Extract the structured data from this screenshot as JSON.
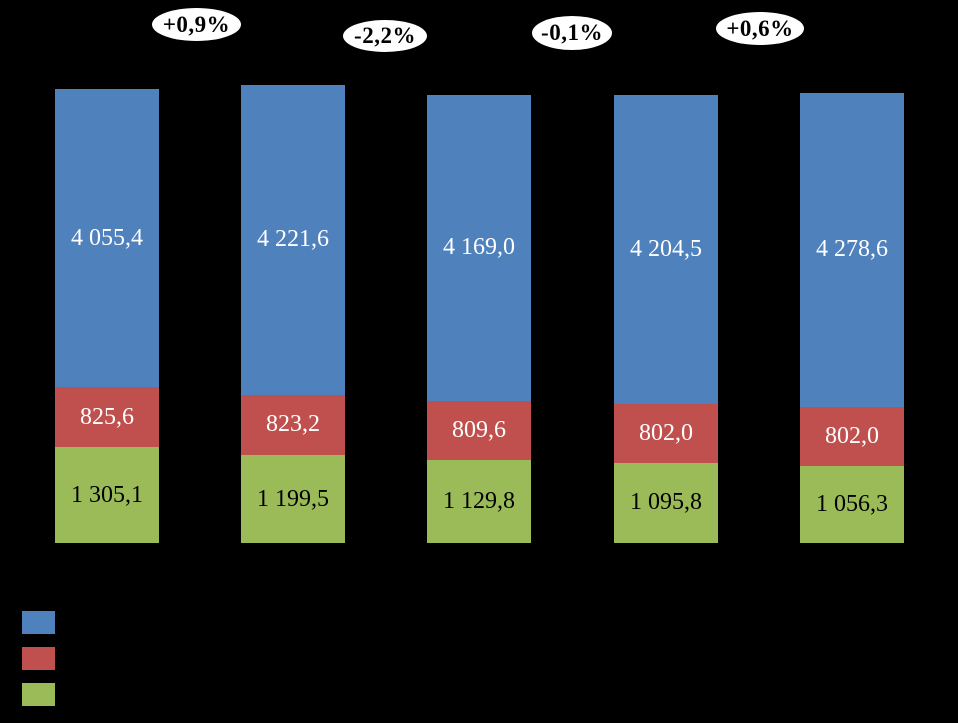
{
  "chart_data": {
    "type": "bar",
    "stacked": true,
    "background_color": "#000000",
    "bar_count": 5,
    "series": [
      {
        "name": "top-blue",
        "color": "#4F81BD",
        "label_color": "#FFFFFF",
        "values": [
          4055.4,
          4221.6,
          4169.0,
          4204.5,
          4278.6
        ],
        "labels": [
          "4 055,4",
          "4 221,6",
          "4 169,0",
          "4 204,5",
          "4 278,6"
        ]
      },
      {
        "name": "middle-red",
        "color": "#C0504D",
        "label_color": "#FFFFFF",
        "values": [
          825.6,
          823.2,
          809.6,
          802.0,
          802.0
        ],
        "labels": [
          "825,6",
          "823,2",
          "809,6",
          "802,0",
          "802,0"
        ]
      },
      {
        "name": "bottom-green",
        "color": "#9BBB59",
        "label_color": "#000000",
        "values": [
          1305.1,
          1199.5,
          1129.8,
          1095.8,
          1056.3
        ],
        "labels": [
          "1 305,1",
          "1 199,5",
          "1 129,8",
          "1 095,8",
          "1 056,3"
        ]
      }
    ],
    "change_annotations": [
      {
        "label": "+0,9%"
      },
      {
        "label": "-2,2%"
      },
      {
        "label": "-0,1%"
      },
      {
        "label": "+0,6%"
      }
    ],
    "legend": {
      "position": "bottom-left",
      "entries": [
        {
          "swatch_color": "#4F81BD"
        },
        {
          "swatch_color": "#C0504D"
        },
        {
          "swatch_color": "#9BBB59"
        }
      ]
    }
  }
}
